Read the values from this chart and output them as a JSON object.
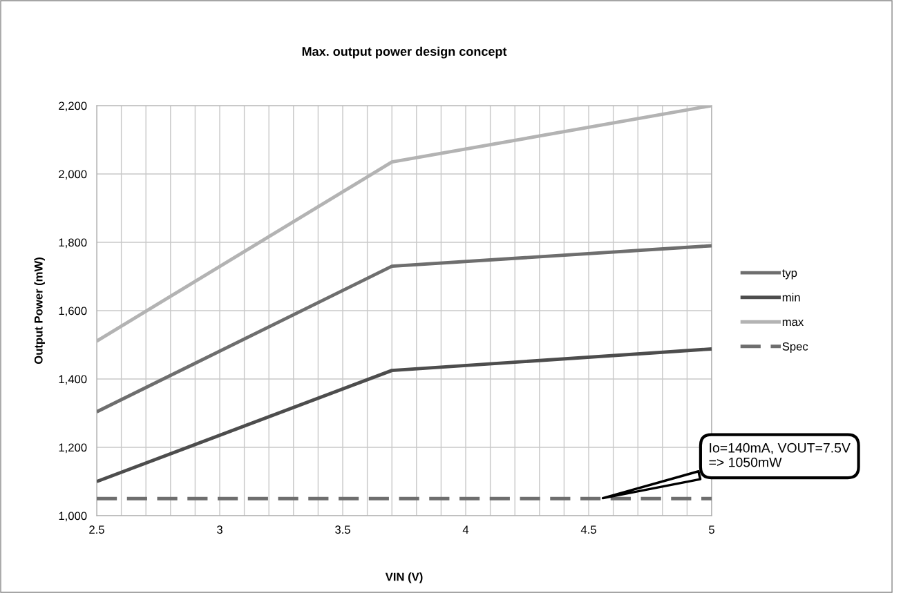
{
  "chart_data": {
    "type": "line",
    "title": "Max. output power design concept",
    "xlabel": "VIN (V)",
    "ylabel": "Output Power (mW)",
    "series": [
      {
        "name": "typ",
        "color": "#6e6e6e",
        "x": [
          2.5,
          3.7,
          5
        ],
        "values": [
          1304,
          1730,
          1790
        ]
      },
      {
        "name": "min",
        "color": "#4d4d4d",
        "x": [
          2.5,
          3.7,
          5
        ],
        "values": [
          1100,
          1425,
          1488
        ]
      },
      {
        "name": "max",
        "color": "#b3b3b3",
        "x": [
          2.5,
          3.7,
          5
        ],
        "values": [
          1511,
          2035,
          2200
        ]
      },
      {
        "name": "Spec",
        "color": "#6e6e6e",
        "x": [
          2.5,
          5
        ],
        "values": [
          1050,
          1050
        ],
        "line_style": "dashed"
      }
    ],
    "annotations": [
      {
        "text": "Io=140mA, VOUT=7.5V\n=> 1050mW",
        "x": 4.55,
        "y": 1050
      }
    ],
    "xlim": [
      2.5,
      5
    ],
    "ylim": [
      1000,
      2200
    ],
    "xticks": [
      2.5,
      {
        "value": 2.6,
        "label": null
      },
      {
        "value": 2.7,
        "label": null
      },
      {
        "value": 2.8,
        "label": null
      },
      {
        "value": 2.9,
        "label": null
      },
      3,
      {
        "value": 3.1,
        "label": null
      },
      {
        "value": 3.2,
        "label": null
      },
      {
        "value": 3.3,
        "label": null
      },
      {
        "value": 3.4,
        "label": null
      },
      3.5,
      {
        "value": 3.6,
        "label": null
      },
      {
        "value": 3.7,
        "label": null
      },
      {
        "value": 3.8,
        "label": null
      },
      {
        "value": 3.9,
        "label": null
      },
      4,
      {
        "value": 4.1,
        "label": null
      },
      {
        "value": 4.2,
        "label": null
      },
      {
        "value": 4.3,
        "label": null
      },
      {
        "value": 4.4,
        "label": null
      },
      4.5,
      {
        "value": 4.6,
        "label": null
      },
      {
        "value": 4.7,
        "label": null
      },
      {
        "value": 4.8,
        "label": null
      },
      {
        "value": 4.9,
        "label": null
      },
      5
    ],
    "yticks": [
      {
        "value": 1000,
        "label": "1,000"
      },
      {
        "value": 1200,
        "label": "1,200"
      },
      {
        "value": 1400,
        "label": "1,400"
      },
      {
        "value": 1600,
        "label": "1,600"
      },
      {
        "value": 1800,
        "label": "1,800"
      },
      {
        "value": 2000,
        "label": "2,000"
      },
      {
        "value": 2200,
        "label": "2,200"
      }
    ],
    "grid": true,
    "legend": "right",
    "line_style": "solid",
    "marker": "none"
  }
}
